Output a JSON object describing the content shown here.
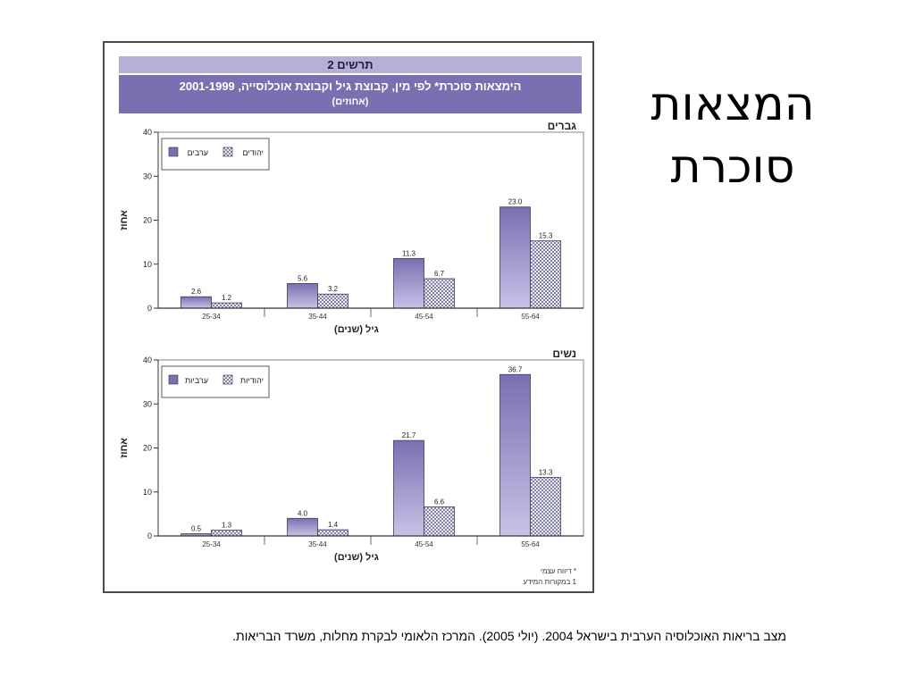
{
  "slide": {
    "title_line1": "המצאות",
    "title_line2": "סוכרת"
  },
  "figure": {
    "number": "תרשים 2",
    "title": "הימצאות סוכרת* לפי מין, קבוצת גיל וקבוצת אוכלוסייה, 2001-1999",
    "subtitle": "(אחוזים)",
    "footnote1": "* דיווח עצמי",
    "footnote2": "1 במקורות המידע"
  },
  "source": "מצב בריאות האוכלוסיה הערבית בישראל 2004. (יולי 2005). המרכז הלאומי לבקרת מחלות, משרד הבריאות.",
  "chart_data": [
    {
      "type": "bar",
      "title": "גברים",
      "xlabel": "גיל (שנים)",
      "ylabel": "אחוז",
      "ylim": [
        0,
        40
      ],
      "yticks": [
        0,
        10,
        20,
        30,
        40
      ],
      "categories": [
        "25-34",
        "35-44",
        "45-54",
        "55-64"
      ],
      "series": [
        {
          "name": "ערבים",
          "values": [
            2.6,
            5.6,
            11.3,
            23.0
          ],
          "labels": [
            "2.6",
            "5.6",
            "11.3",
            "23.0"
          ]
        },
        {
          "name": "יהודים",
          "values": [
            1.2,
            3.2,
            6.7,
            15.3
          ],
          "labels": [
            "1.2",
            "3.2",
            "6.7",
            "15.3"
          ]
        }
      ],
      "legend": "top-left"
    },
    {
      "type": "bar",
      "title": "נשים",
      "xlabel": "גיל (שנים)",
      "ylabel": "אחוז",
      "ylim": [
        0,
        40
      ],
      "yticks": [
        0,
        10,
        20,
        30,
        40
      ],
      "categories": [
        "25-34",
        "35-44",
        "45-54",
        "55-64"
      ],
      "series": [
        {
          "name": "ערביות",
          "values": [
            0.5,
            4.0,
            21.7,
            36.7
          ],
          "labels": [
            "0.5",
            "4.0",
            "21.7",
            "36.7"
          ]
        },
        {
          "name": "יהודיות",
          "values": [
            1.3,
            1.4,
            6.6,
            13.3
          ],
          "labels": [
            "1.3",
            "1.4",
            "6.6",
            "13.3"
          ]
        }
      ],
      "legend": "top-left"
    }
  ],
  "colors": {
    "series1_fill": "#7b6fb2",
    "series2_hatch": "#5a5a8a",
    "header_dark": "#7b6fb2",
    "header_light": "#b6b0d6"
  }
}
